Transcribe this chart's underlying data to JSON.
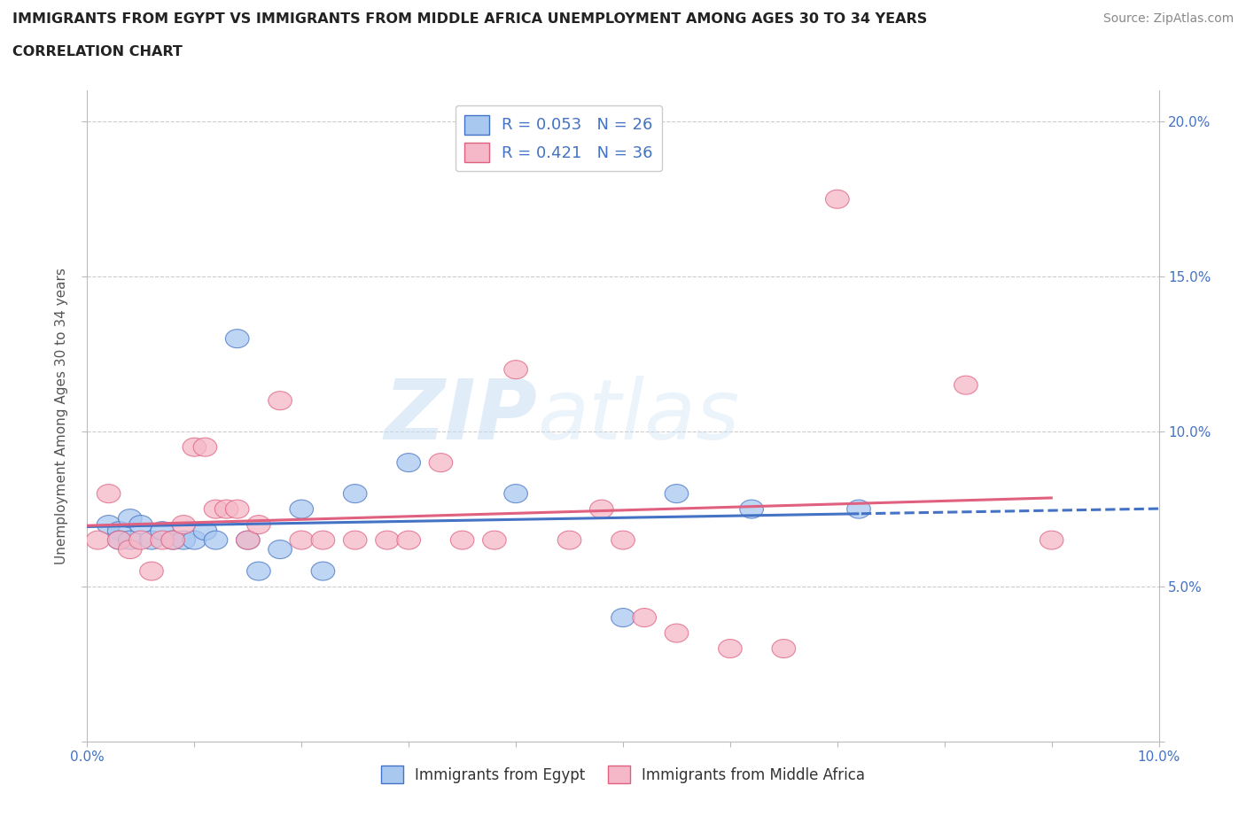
{
  "title_line1": "IMMIGRANTS FROM EGYPT VS IMMIGRANTS FROM MIDDLE AFRICA UNEMPLOYMENT AMONG AGES 30 TO 34 YEARS",
  "title_line2": "CORRELATION CHART",
  "source_text": "Source: ZipAtlas.com",
  "ylabel": "Unemployment Among Ages 30 to 34 years",
  "xlim": [
    0.0,
    0.1
  ],
  "ylim": [
    0.0,
    0.21
  ],
  "xticks": [
    0.0,
    0.01,
    0.02,
    0.03,
    0.04,
    0.05,
    0.06,
    0.07,
    0.08,
    0.09,
    0.1
  ],
  "yticks": [
    0.0,
    0.05,
    0.1,
    0.15,
    0.2
  ],
  "ytick_labels_right": [
    "",
    "5.0%",
    "10.0%",
    "15.0%",
    "20.0%"
  ],
  "xtick_labels": [
    "0.0%",
    "",
    "",
    "",
    "",
    "",
    "",
    "",
    "",
    "",
    "10.0%"
  ],
  "r_egypt": 0.053,
  "n_egypt": 26,
  "r_middle_africa": 0.421,
  "n_middle_africa": 36,
  "color_egypt": "#a8c8f0",
  "color_middle_africa": "#f5b8c8",
  "line_color_egypt": "#4472c4",
  "line_color_middle_africa": "#e06080",
  "background_color": "#ffffff",
  "grid_color": "#cccccc",
  "egypt_x": [
    0.002,
    0.003,
    0.003,
    0.004,
    0.004,
    0.005,
    0.006,
    0.007,
    0.008,
    0.009,
    0.01,
    0.011,
    0.012,
    0.014,
    0.015,
    0.016,
    0.018,
    0.02,
    0.022,
    0.025,
    0.03,
    0.04,
    0.05,
    0.055,
    0.062,
    0.072
  ],
  "egypt_y": [
    0.07,
    0.068,
    0.065,
    0.072,
    0.065,
    0.07,
    0.065,
    0.068,
    0.065,
    0.065,
    0.065,
    0.068,
    0.065,
    0.13,
    0.065,
    0.055,
    0.062,
    0.075,
    0.055,
    0.08,
    0.09,
    0.08,
    0.04,
    0.08,
    0.075,
    0.075
  ],
  "middle_africa_x": [
    0.001,
    0.002,
    0.003,
    0.004,
    0.005,
    0.006,
    0.007,
    0.008,
    0.009,
    0.01,
    0.011,
    0.012,
    0.013,
    0.014,
    0.015,
    0.016,
    0.018,
    0.02,
    0.022,
    0.025,
    0.028,
    0.03,
    0.033,
    0.035,
    0.038,
    0.04,
    0.045,
    0.048,
    0.05,
    0.052,
    0.055,
    0.06,
    0.065,
    0.07,
    0.082,
    0.09
  ],
  "middle_africa_y": [
    0.065,
    0.08,
    0.065,
    0.062,
    0.065,
    0.055,
    0.065,
    0.065,
    0.07,
    0.095,
    0.095,
    0.075,
    0.075,
    0.075,
    0.065,
    0.07,
    0.11,
    0.065,
    0.065,
    0.065,
    0.065,
    0.065,
    0.09,
    0.065,
    0.065,
    0.12,
    0.065,
    0.075,
    0.065,
    0.04,
    0.035,
    0.03,
    0.03,
    0.175,
    0.115,
    0.065
  ],
  "watermark_zip": "ZIP",
  "watermark_atlas": "atlas"
}
